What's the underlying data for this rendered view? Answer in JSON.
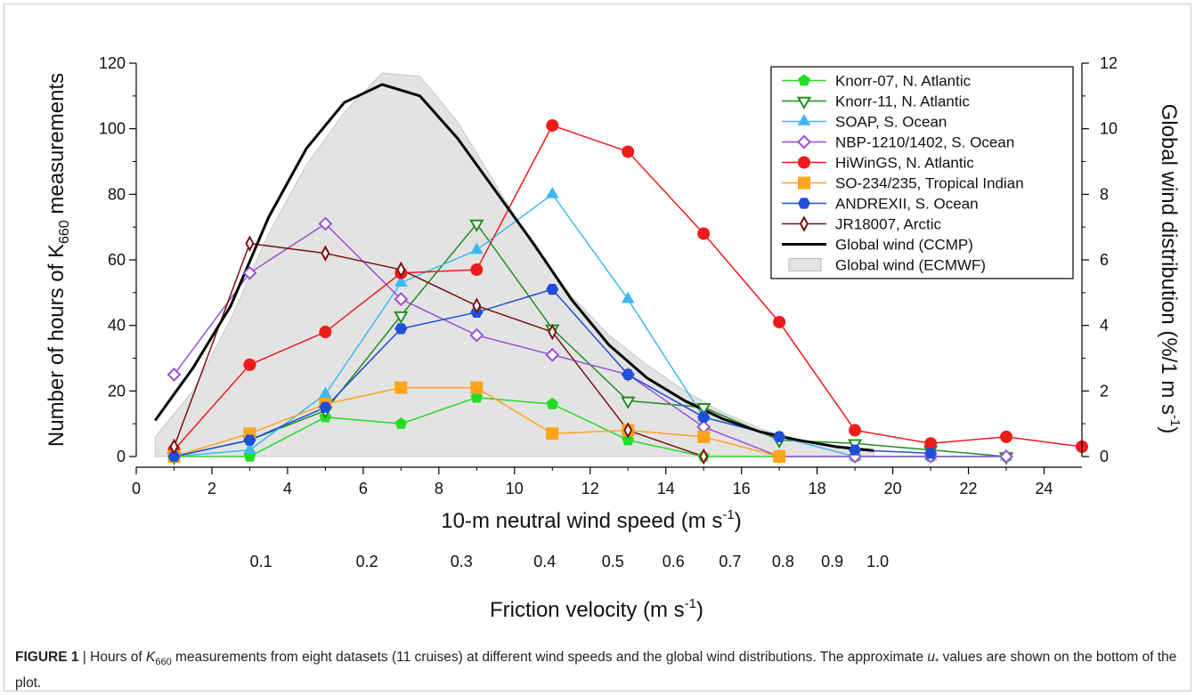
{
  "chart_data": {
    "type": "line",
    "left_axis": {
      "label_parts": [
        "Number of hours of K",
        "660",
        " measurements"
      ],
      "range": [
        0,
        120
      ],
      "ticks": [
        "0",
        "20",
        "40",
        "60",
        "80",
        "100",
        "120"
      ]
    },
    "right_axis": {
      "label_parts": [
        "Global wind distribution (%/1 m s",
        "-1",
        ")"
      ],
      "range": [
        0,
        12
      ],
      "ticks": [
        "0",
        "2",
        "4",
        "6",
        "8",
        "10",
        "12"
      ]
    },
    "x_axis": {
      "label_parts": [
        "10-m neutral wind speed (m s",
        "-1",
        ")"
      ],
      "range": [
        0,
        25
      ],
      "ticks": [
        "0",
        "2",
        "4",
        "6",
        "8",
        "10",
        "12",
        "14",
        "16",
        "18",
        "20",
        "22",
        "24"
      ]
    },
    "friction_axis": {
      "label_parts": [
        "Friction velocity (m s",
        "-1",
        ")"
      ],
      "labels": [
        {
          "text": "0.1",
          "wind": 3.3
        },
        {
          "text": "0.2",
          "wind": 6.1
        },
        {
          "text": "0.3",
          "wind": 8.6
        },
        {
          "text": "0.4",
          "wind": 10.8
        },
        {
          "text": "0.5",
          "wind": 12.6
        },
        {
          "text": "0.6",
          "wind": 14.2
        },
        {
          "text": "0.7",
          "wind": 15.7
        },
        {
          "text": "0.8",
          "wind": 17.1
        },
        {
          "text": "0.9",
          "wind": 18.4
        },
        {
          "text": "1.0",
          "wind": 19.6
        }
      ]
    },
    "series": [
      {
        "name": "Knorr-07, N. Atlantic",
        "color": "#22dd22",
        "marker": "pentagon",
        "filled": true,
        "axis": "left",
        "x": [
          1,
          3,
          5,
          7,
          9,
          11,
          13,
          15,
          17,
          19,
          21,
          23
        ],
        "y": [
          0,
          0,
          12,
          10,
          18,
          16,
          5,
          0,
          0,
          0,
          0,
          0
        ]
      },
      {
        "name": "Knorr-11, N. Atlantic",
        "color": "#1f8f1f",
        "marker": "triangle-down",
        "filled": false,
        "axis": "left",
        "x": [
          1,
          3,
          5,
          7,
          9,
          11,
          13,
          15,
          17,
          19,
          21,
          23
        ],
        "y": [
          0,
          5,
          14,
          43,
          71,
          39,
          17,
          15,
          5,
          4,
          2,
          0
        ]
      },
      {
        "name": "SOAP, S. Ocean",
        "color": "#3fb8f0",
        "marker": "triangle-up",
        "filled": true,
        "axis": "left",
        "x": [
          1,
          3,
          5,
          7,
          9,
          11,
          13,
          15,
          17,
          19,
          21,
          23
        ],
        "y": [
          0,
          2,
          19,
          53,
          63,
          80,
          48,
          12,
          6,
          0,
          0,
          0
        ]
      },
      {
        "name": "NBP-1210/1402, S. Ocean",
        "color": "#9a4fd8",
        "marker": "diamond",
        "filled": false,
        "axis": "left",
        "x": [
          1,
          3,
          5,
          7,
          9,
          11,
          13,
          15,
          17,
          19,
          21,
          23
        ],
        "y": [
          25,
          56,
          71,
          48,
          37,
          31,
          25,
          9,
          0,
          0,
          0,
          0
        ]
      },
      {
        "name": "HiWinGS, N. Atlantic",
        "color": "#ee1b1b",
        "marker": "circle",
        "filled": true,
        "axis": "left",
        "x": [
          1,
          3,
          5,
          7,
          9,
          11,
          13,
          15,
          17,
          19,
          21,
          23,
          25
        ],
        "y": [
          2,
          28,
          38,
          56,
          57,
          101,
          93,
          68,
          41,
          8,
          4,
          6,
          3
        ]
      },
      {
        "name": "SO-234/235, Tropical Indian",
        "color": "#ffa41c",
        "marker": "square",
        "filled": true,
        "axis": "left",
        "x": [
          1,
          3,
          5,
          7,
          9,
          11,
          13,
          15,
          17
        ],
        "y": [
          0,
          7,
          16,
          21,
          21,
          7,
          8,
          6,
          0
        ]
      },
      {
        "name": "ANDREXII, S. Ocean",
        "color": "#1f4fd8",
        "marker": "hexagon",
        "filled": true,
        "axis": "left",
        "x": [
          1,
          3,
          5,
          7,
          9,
          11,
          13,
          15,
          17,
          19,
          21
        ],
        "y": [
          0,
          5,
          15,
          39,
          44,
          51,
          25,
          12,
          6,
          2,
          1
        ]
      },
      {
        "name": "JR18007, Arctic",
        "color": "#7a1212",
        "marker": "thin-diamond",
        "filled": false,
        "axis": "left",
        "x": [
          1,
          3,
          5,
          7,
          9,
          11,
          13,
          15
        ],
        "y": [
          3,
          65,
          62,
          57,
          46,
          38,
          8,
          0
        ]
      },
      {
        "name": "Global wind (CCMP)",
        "color": "#000000",
        "marker": "none",
        "filled": false,
        "axis": "right",
        "x": [
          0.5,
          1.5,
          2.5,
          3.5,
          4.5,
          5.5,
          6.5,
          7.5,
          8.5,
          9.5,
          10.5,
          11.5,
          12.5,
          13.5,
          14.5,
          15.5,
          16.5,
          17.5,
          18.5,
          19.5
        ],
        "y": [
          1.1,
          2.7,
          4.6,
          7.3,
          9.4,
          10.8,
          11.35,
          11.0,
          9.7,
          8.1,
          6.5,
          4.8,
          3.4,
          2.4,
          1.7,
          1.15,
          0.75,
          0.5,
          0.3,
          0.18
        ]
      },
      {
        "name": "Global wind (ECMWF)",
        "color": "#e3e3e3",
        "marker": "area",
        "filled": true,
        "axis": "right",
        "x": [
          0.5,
          1.5,
          2.5,
          3.5,
          4.5,
          5.5,
          6.5,
          7.5,
          8.5,
          9.5,
          10.5,
          11.5,
          12.5,
          13.5,
          14.5,
          15.5,
          16.5,
          17.5,
          18.5,
          19.5
        ],
        "y": [
          0.6,
          2.0,
          4.2,
          6.8,
          8.9,
          10.5,
          11.7,
          11.6,
          10.2,
          8.3,
          6.4,
          4.9,
          3.7,
          2.8,
          2.0,
          1.35,
          0.85,
          0.5,
          0.28,
          0.15
        ]
      }
    ],
    "legend_position": "top-right",
    "grid": false
  },
  "caption": {
    "label": "FIGURE 1",
    "separator": " | ",
    "text_parts": [
      "Hours of ",
      "K",
      "660",
      " measurements from eight datasets (11 cruises) at different wind speeds and the global wind distributions. The approximate ",
      "u",
      "*",
      " values are shown on the bottom of the plot."
    ]
  }
}
